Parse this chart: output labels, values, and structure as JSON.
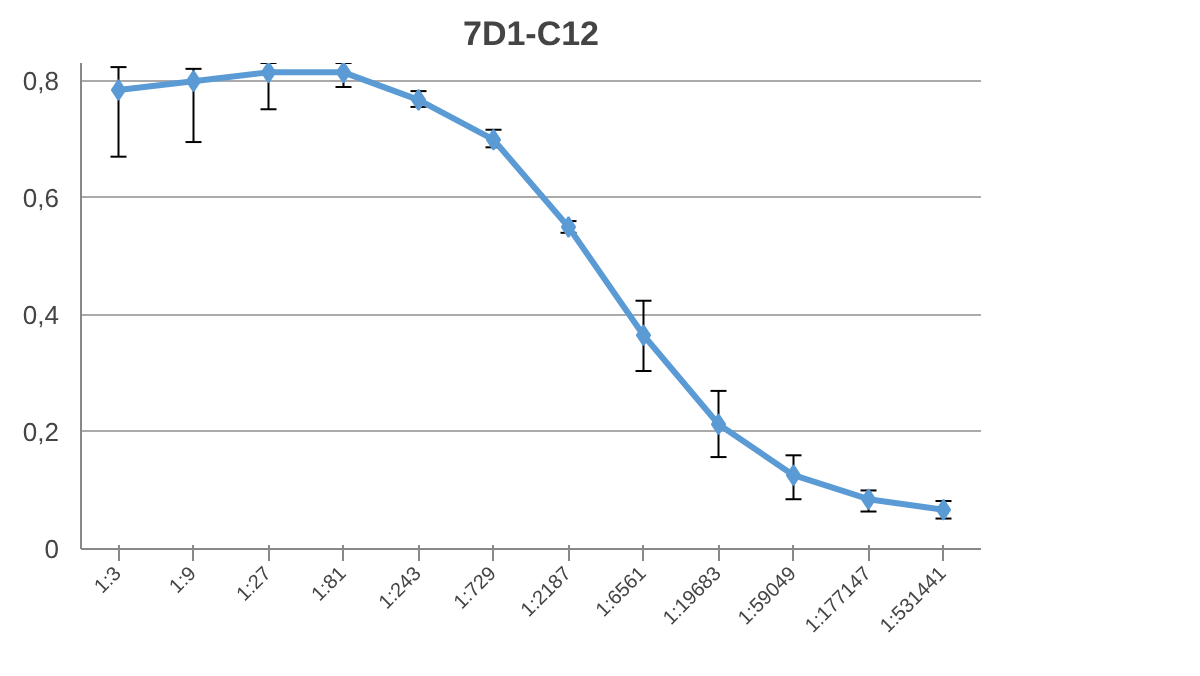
{
  "chart_data": {
    "type": "line",
    "title": "7D1-C12",
    "categories": [
      "1:3",
      "1:9",
      "1:27",
      "1:81",
      "1:243",
      "1:729",
      "1:2187",
      "1:6561",
      "1:19683",
      "1:59049",
      "1:177147",
      "1:531441"
    ],
    "series": [
      {
        "color": "#5b9bd5",
        "values": [
          0.784,
          0.799,
          0.814,
          0.814,
          0.767,
          0.699,
          0.55,
          0.365,
          0.213,
          0.126,
          0.085,
          0.067
        ],
        "errors": [
          [
            0.67,
            0.823
          ],
          [
            0.695,
            0.82
          ],
          [
            0.751,
            0.83
          ],
          [
            0.789,
            0.83
          ],
          [
            0.755,
            0.782
          ],
          [
            0.686,
            0.716
          ],
          [
            0.54,
            0.56
          ],
          [
            0.304,
            0.424
          ],
          [
            0.157,
            0.27
          ],
          [
            0.085,
            0.16
          ],
          [
            0.064,
            0.1
          ],
          [
            0.052,
            0.082
          ]
        ]
      }
    ],
    "ylim": [
      0,
      0.83
    ],
    "yticks": [
      {
        "value": 0,
        "label": "0"
      },
      {
        "value": 0.2,
        "label": "0,2"
      },
      {
        "value": 0.4,
        "label": "0,4"
      },
      {
        "value": 0.6,
        "label": "0,6"
      },
      {
        "value": 0.8,
        "label": "0,8"
      }
    ],
    "grid": "y",
    "marker": "diamond",
    "line_style": "solid"
  }
}
